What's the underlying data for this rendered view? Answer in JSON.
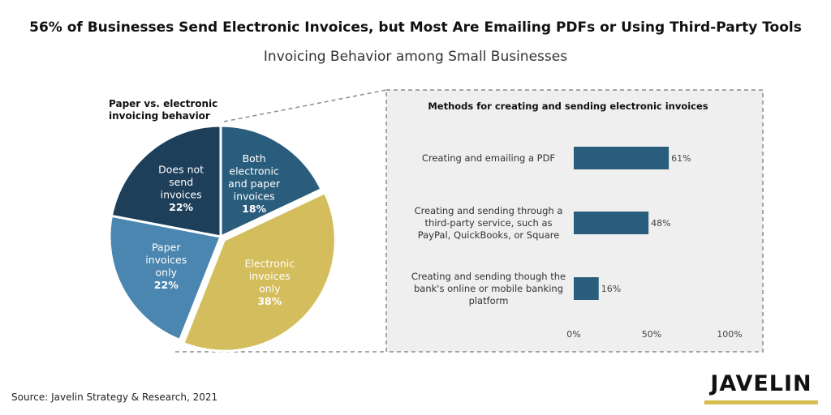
{
  "title": "56% of Businesses Send Electronic Invoices, but Most Are Emailing PDFs or Using Third-Party Tools",
  "subtitle": "Invoicing Behavior among Small Businesses",
  "source": "Source: Javelin Strategy & Research, 2021",
  "logo": "JAVELIN",
  "colors": {
    "dark_navy": "#1e3f5a",
    "steel_blue": "#2a5d7c",
    "light_blue": "#4a86b0",
    "gold": "#d4bd5c",
    "bar": "#2a5d7c",
    "panel_bg": "#efefef",
    "dashed": "#8c8c8c"
  },
  "chart_data": [
    {
      "type": "pie",
      "title": "Paper vs. electronic invoicing behavior",
      "title_lines": [
        "Paper vs. electronic",
        "invoicing behavior"
      ],
      "slices": [
        {
          "label_lines": [
            "Both",
            "electronic",
            "and paper",
            "invoices"
          ],
          "value": 18,
          "value_label": "18%",
          "color": "#2a5d7c",
          "text_color": "#ffffff"
        },
        {
          "label_lines": [
            "Electronic",
            "invoices",
            "only"
          ],
          "value": 38,
          "value_label": "38%",
          "color": "#d4bd5c",
          "text_color": "#ffffff",
          "exploded": true
        },
        {
          "label_lines": [
            "Paper",
            "invoices",
            "only"
          ],
          "value": 22,
          "value_label": "22%",
          "color": "#4a86b0",
          "text_color": "#ffffff"
        },
        {
          "label_lines": [
            "Does not",
            "send",
            "invoices"
          ],
          "value": 22,
          "value_label": "22%",
          "color": "#1e3f5a",
          "text_color": "#ffffff"
        }
      ]
    },
    {
      "type": "bar",
      "orientation": "horizontal",
      "title": "Methods for creating and sending electronic invoices",
      "categories": [
        "Creating and emailing a PDF",
        "Creating and sending through a third-party service, such as PayPal, QuickBooks, or Square",
        "Creating and sending though the bank's online or mobile banking platform"
      ],
      "category_lines": [
        [
          "Creating and emailing a PDF"
        ],
        [
          "Creating and sending through a",
          "third-party service, such as",
          "PayPal, QuickBooks, or Square"
        ],
        [
          "Creating and sending though the",
          "bank's online or mobile banking",
          "platform"
        ]
      ],
      "values": [
        61,
        48,
        16
      ],
      "value_labels": [
        "61%",
        "48%",
        "16%"
      ],
      "xlim": [
        0,
        100
      ],
      "xticks": [
        0,
        50,
        100
      ],
      "xtick_labels": [
        "0%",
        "50%",
        "100%"
      ],
      "grid": false
    }
  ]
}
